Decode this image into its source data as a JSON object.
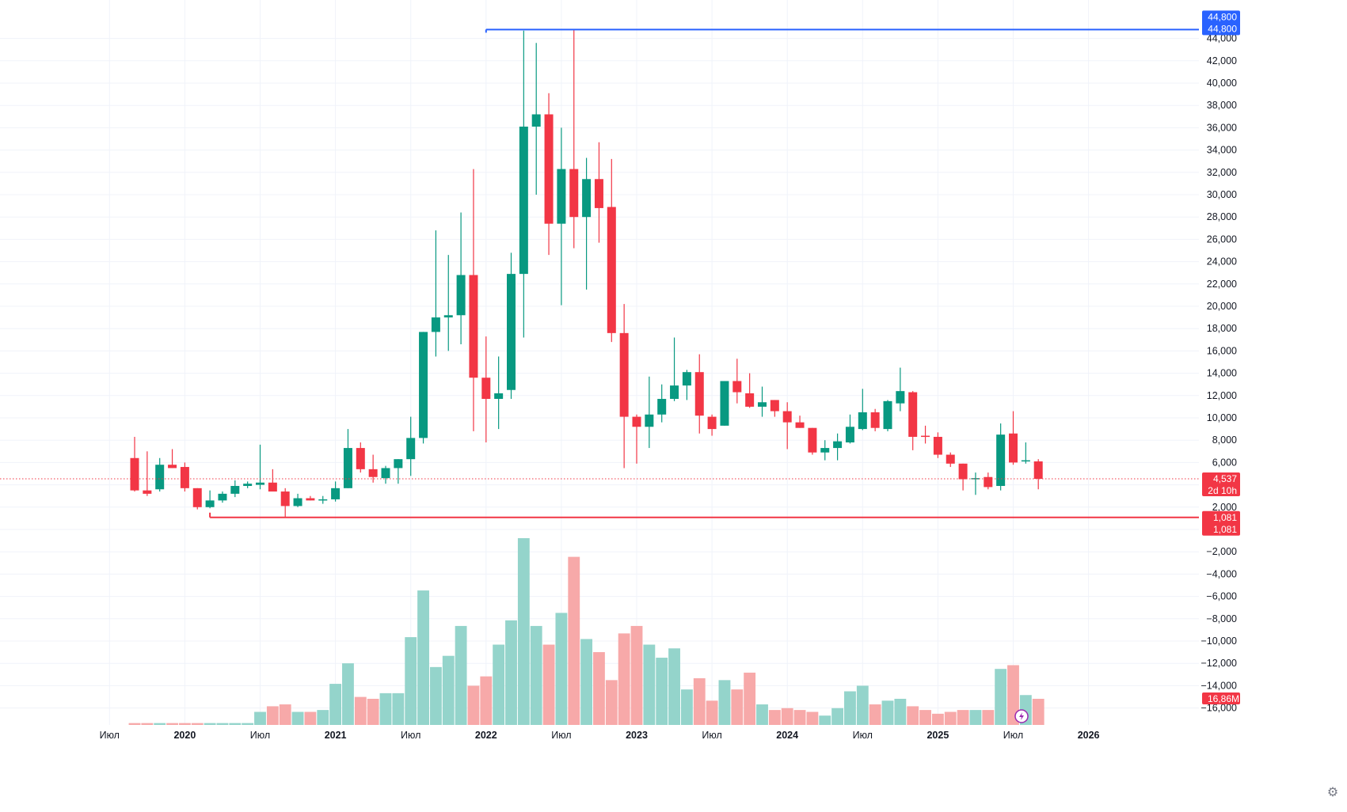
{
  "chart_data": {
    "type": "candlestick",
    "interval": "1 month",
    "x_start": "2019-09",
    "ohlc": [
      [
        6400,
        8300,
        3400,
        3500
      ],
      [
        3500,
        7000,
        3000,
        3200
      ],
      [
        3600,
        6400,
        3400,
        5800
      ],
      [
        5800,
        7200,
        5500,
        5500
      ],
      [
        5600,
        6000,
        3400,
        3700
      ],
      [
        3700,
        3700,
        1800,
        2000
      ],
      [
        2000,
        3500,
        1900,
        2600
      ],
      [
        2600,
        3400,
        2400,
        3200
      ],
      [
        3200,
        4400,
        2900,
        3900
      ],
      [
        3900,
        4300,
        3700,
        4100
      ],
      [
        4000,
        7600,
        3600,
        4200
      ],
      [
        4200,
        5400,
        3800,
        3400
      ],
      [
        3400,
        3700,
        1081,
        2100
      ],
      [
        2100,
        3200,
        2000,
        2800
      ],
      [
        2800,
        3000,
        2600,
        2600
      ],
      [
        2600,
        3000,
        2300,
        2700
      ],
      [
        2700,
        4300,
        2500,
        3700
      ],
      [
        3700,
        9000,
        3700,
        7300
      ],
      [
        7300,
        7800,
        5100,
        5400
      ],
      [
        5400,
        6700,
        4200,
        4700
      ],
      [
        4600,
        5700,
        4100,
        5500
      ],
      [
        5500,
        6300,
        4100,
        6300
      ],
      [
        6300,
        10100,
        4800,
        8200
      ],
      [
        8200,
        17700,
        7700,
        17700
      ],
      [
        17700,
        26800,
        15500,
        19000
      ],
      [
        19000,
        24600,
        16000,
        19200
      ],
      [
        19200,
        28400,
        16600,
        22800
      ],
      [
        22800,
        32300,
        8800,
        13600
      ],
      [
        13600,
        17300,
        7800,
        11700
      ],
      [
        11700,
        15500,
        9000,
        12200
      ],
      [
        12500,
        24800,
        11700,
        22900
      ],
      [
        22900,
        44700,
        17200,
        36100
      ],
      [
        36100,
        43600,
        30000,
        37200
      ],
      [
        37200,
        39100,
        24600,
        27400
      ],
      [
        27400,
        36000,
        20100,
        32300
      ],
      [
        32300,
        44800,
        25200,
        28000
      ],
      [
        28000,
        33300,
        21500,
        31400
      ],
      [
        31400,
        34700,
        25700,
        28800
      ],
      [
        28900,
        33200,
        16800,
        17600
      ],
      [
        17600,
        20200,
        5500,
        10100
      ],
      [
        10100,
        10300,
        5900,
        9200
      ],
      [
        9200,
        13700,
        7300,
        10300
      ],
      [
        10300,
        13000,
        9600,
        11700
      ],
      [
        11700,
        17200,
        11500,
        12900
      ],
      [
        12900,
        14300,
        11600,
        14100
      ],
      [
        14100,
        15700,
        8600,
        10200
      ],
      [
        10100,
        10300,
        8400,
        9000
      ],
      [
        9300,
        13300,
        9300,
        13300
      ],
      [
        13300,
        15300,
        11300,
        12300
      ],
      [
        12200,
        14000,
        10900,
        11000
      ],
      [
        11000,
        12800,
        10100,
        11400
      ],
      [
        11600,
        11600,
        10100,
        10600
      ],
      [
        10600,
        11400,
        7200,
        9600
      ],
      [
        9600,
        10200,
        9100,
        9100
      ],
      [
        9100,
        9100,
        6700,
        6900
      ],
      [
        6900,
        8000,
        6200,
        7300
      ],
      [
        7300,
        8600,
        6200,
        7900
      ],
      [
        7800,
        10300,
        7700,
        9200
      ],
      [
        9000,
        12600,
        8900,
        10500
      ],
      [
        10500,
        10800,
        8800,
        9100
      ],
      [
        9000,
        11600,
        8800,
        11500
      ],
      [
        11300,
        14500,
        10600,
        12400
      ],
      [
        12300,
        12400,
        7100,
        8300
      ],
      [
        8400,
        9300,
        7700,
        8300
      ],
      [
        8300,
        8700,
        6400,
        6700
      ],
      [
        6700,
        6900,
        5600,
        5900
      ],
      [
        5900,
        5900,
        3500,
        4500
      ],
      [
        4600,
        5100,
        3100,
        4600
      ],
      [
        4700,
        5100,
        3600,
        3800
      ],
      [
        3900,
        9500,
        3500,
        8500
      ],
      [
        8600,
        10600,
        5800,
        6000
      ],
      [
        6200,
        7800,
        5900,
        6200
      ],
      [
        6100,
        6300,
        3600,
        4537
      ]
    ],
    "volume_rel": [
      0.01,
      0.01,
      0.01,
      0.01,
      0.01,
      0.01,
      0.01,
      0.01,
      0.01,
      0.01,
      0.07,
      0.1,
      0.11,
      0.07,
      0.07,
      0.08,
      0.22,
      0.33,
      0.15,
      0.14,
      0.17,
      0.17,
      0.47,
      0.72,
      0.31,
      0.37,
      0.53,
      0.21,
      0.26,
      0.43,
      0.56,
      1.0,
      0.53,
      0.43,
      0.6,
      0.9,
      0.46,
      0.39,
      0.24,
      0.49,
      0.53,
      0.43,
      0.36,
      0.41,
      0.19,
      0.25,
      0.13,
      0.24,
      0.19,
      0.28,
      0.11,
      0.08,
      0.09,
      0.08,
      0.07,
      0.05,
      0.09,
      0.18,
      0.21,
      0.11,
      0.13,
      0.14,
      0.1,
      0.08,
      0.06,
      0.07,
      0.08,
      0.08,
      0.08,
      0.3,
      0.32,
      0.16,
      0.14
    ],
    "price_axis": {
      "ticks": [
        "44,000",
        "42,000",
        "40,000",
        "38,000",
        "36,000",
        "34,000",
        "32,000",
        "30,000",
        "28,000",
        "26,000",
        "24,000",
        "22,000",
        "20,000",
        "18,000",
        "16,000",
        "14,000",
        "12,000",
        "10,000",
        "8,000",
        "6,000",
        "2,000",
        "−2,000",
        "−4,000",
        "−6,000",
        "−8,000",
        "−10,000",
        "−12,000",
        "−14,000",
        "−16,000"
      ]
    },
    "time_axis": {
      "labels": [
        {
          "text": "Июл",
          "date": "2019-07",
          "bold": false
        },
        {
          "text": "2020",
          "date": "2020-01",
          "bold": true
        },
        {
          "text": "Июл",
          "date": "2020-07",
          "bold": false
        },
        {
          "text": "2021",
          "date": "2021-01",
          "bold": true
        },
        {
          "text": "Июл",
          "date": "2021-07",
          "bold": false
        },
        {
          "text": "2022",
          "date": "2022-01",
          "bold": true
        },
        {
          "text": "Июл",
          "date": "2022-07",
          "bold": false
        },
        {
          "text": "2023",
          "date": "2023-01",
          "bold": true
        },
        {
          "text": "Июл",
          "date": "2023-07",
          "bold": false
        },
        {
          "text": "2024",
          "date": "2024-01",
          "bold": true
        },
        {
          "text": "Июл",
          "date": "2024-07",
          "bold": false
        },
        {
          "text": "2025",
          "date": "2025-01",
          "bold": true
        },
        {
          "text": "Июл",
          "date": "2025-07",
          "bold": false
        },
        {
          "text": "2026",
          "date": "2026-01",
          "bold": true
        }
      ]
    },
    "high_line": {
      "value": 44800,
      "label": "44,800",
      "label2": "44,800",
      "from": "2022-01",
      "color": "#2962ff"
    },
    "low_line": {
      "value": 1081,
      "label": "1,081",
      "label2": "1,081",
      "from": "2020-03",
      "color": "#f23645"
    },
    "last_price": {
      "value": 4537,
      "label": "4,537",
      "countdown": "2d 10h",
      "color": "#f23645"
    },
    "volume_badge": {
      "label": "16,86M",
      "color": "#f23645"
    },
    "colors": {
      "up": "#089981",
      "down": "#f23645",
      "vol_up": "#94d4cb",
      "vol_down": "#f7a9a9",
      "grid": "#f0f3fa",
      "text": "#131722"
    },
    "grid": true
  },
  "ui": {
    "settings_icon": "gear-icon",
    "flash_icon": "lightning-icon"
  }
}
